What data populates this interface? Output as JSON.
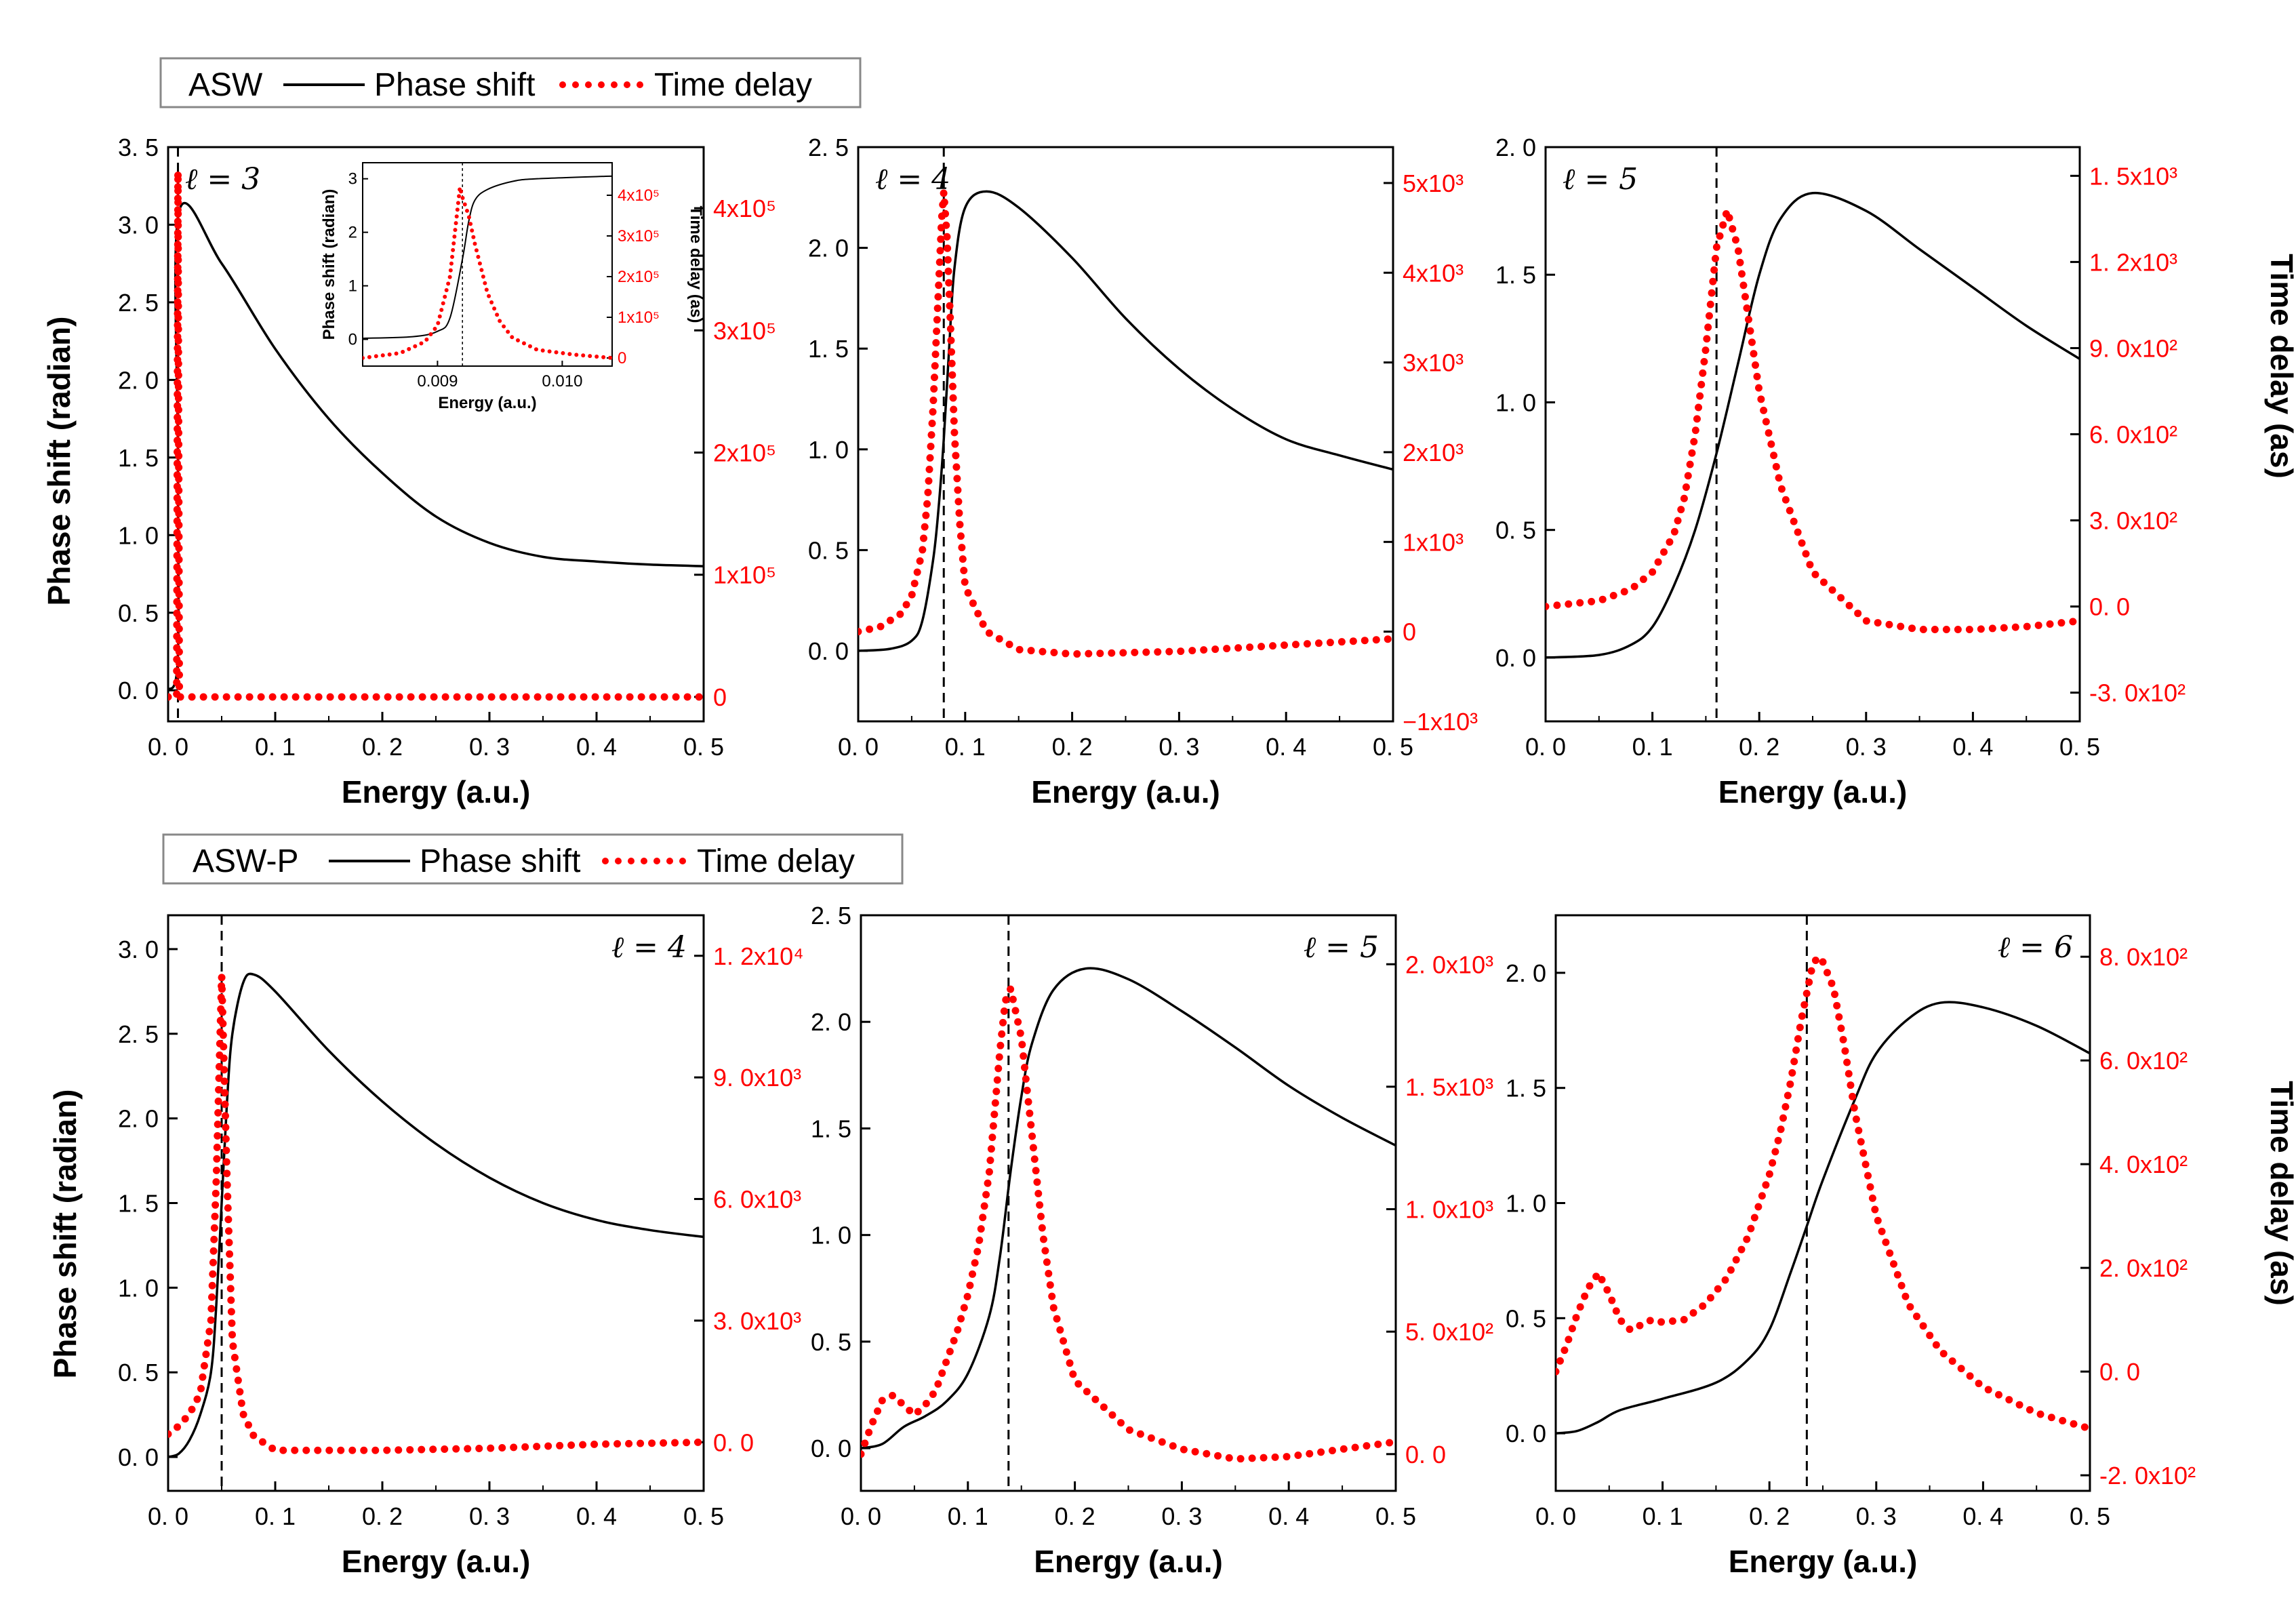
{
  "legend_asw": {
    "model": "ASW",
    "phase": "Phase shift",
    "delay": "Time delay"
  },
  "legend_aswp": {
    "model": "ASW-P",
    "phase": "Phase shift",
    "delay": "Time delay"
  },
  "labels": {
    "xlabel": "Energy (a.u.)",
    "ylabel_left": "Phase shift (radian)",
    "ylabel_right": "Time delay (as)",
    "inset_xlabel": "Energy (a.u.)",
    "inset_ylabel_left": "Phase shift (radian)",
    "inset_ylabel_right": "Time delay (as)"
  },
  "colors": {
    "phase": "#000000",
    "delay": "#ff0000",
    "frame": "#000000"
  },
  "chart_data": [
    {
      "type": "line",
      "panel": "ASW l=3",
      "model": "ASW",
      "l_label": "ℓ = 3",
      "xlim": [
        0,
        0.5
      ],
      "ylim": [
        -0.2,
        3.5
      ],
      "y2lim": [
        -20000,
        450000
      ],
      "xticks": [
        "0. 0",
        "0. 1",
        "0. 2",
        "0. 3",
        "0. 4",
        "0. 5"
      ],
      "yticks": [
        "0. 0",
        "0. 5",
        "1. 0",
        "1. 5",
        "2. 0",
        "2. 5",
        "3. 0",
        "3. 5"
      ],
      "y2ticks": [
        "0",
        "1x10⁵",
        "2x10⁵",
        "3x10⁵",
        "4x10⁵"
      ],
      "resonance_energy": 0.0092,
      "phase_shift": {
        "x": [
          0,
          0.009,
          0.0092,
          0.01,
          0.05,
          0.1,
          0.15,
          0.2,
          0.25,
          0.3,
          0.35,
          0.4,
          0.45,
          0.5
        ],
        "y": [
          0,
          0.2,
          1.5,
          3.08,
          2.75,
          2.2,
          1.75,
          1.4,
          1.12,
          0.95,
          0.86,
          0.83,
          0.81,
          0.8
        ]
      },
      "time_delay": {
        "x": [
          0,
          0.008,
          0.0092,
          0.0105,
          0.02,
          0.1,
          0.2,
          0.3,
          0.4,
          0.5
        ],
        "y": [
          0,
          0,
          430000,
          0,
          0,
          0,
          0,
          0,
          0,
          0
        ]
      },
      "inset": {
        "xlim": [
          0.0084,
          0.0104
        ],
        "ylim": [
          -0.5,
          3.3
        ],
        "y2lim": [
          -20000,
          480000
        ],
        "xticks": [
          "0.009",
          "0.010"
        ],
        "yticks": [
          "0",
          "1",
          "2",
          "3"
        ],
        "y2ticks": [
          "0",
          "1x10⁵",
          "2x10⁵",
          "3x10⁵",
          "4x10⁵"
        ],
        "phase_shift": {
          "x": [
            0.0084,
            0.0088,
            0.009,
            0.0091,
            0.0092,
            0.00925,
            0.0093,
            0.0094,
            0.0096,
            0.0098,
            0.0104
          ],
          "y": [
            0.02,
            0.05,
            0.15,
            0.4,
            1.5,
            2.2,
            2.6,
            2.8,
            2.95,
            3.0,
            3.05
          ]
        },
        "time_delay": {
          "x": [
            0.0084,
            0.0087,
            0.0089,
            0.009,
            0.0091,
            0.00918,
            0.0092,
            0.00925,
            0.0093,
            0.0094,
            0.0095,
            0.0096,
            0.0098,
            0.0101,
            0.0104
          ],
          "y": [
            0,
            12000,
            40000,
            80000,
            200000,
            420000,
            395000,
            350000,
            280000,
            160000,
            90000,
            50000,
            20000,
            8000,
            0
          ]
        }
      }
    },
    {
      "type": "line",
      "panel": "ASW l=4",
      "model": "ASW",
      "l_label": "ℓ = 4",
      "xlim": [
        0,
        0.5
      ],
      "ylim": [
        -0.35,
        2.5
      ],
      "y2lim": [
        -1000,
        5400
      ],
      "xticks": [
        "0. 0",
        "0. 1",
        "0. 2",
        "0. 3",
        "0. 4",
        "0. 5"
      ],
      "yticks": [
        "0. 0",
        "0. 5",
        "1. 0",
        "1. 5",
        "2. 0",
        "2. 5"
      ],
      "y2ticks": [
        "−1x10³",
        "0",
        "1x10³",
        "2x10³",
        "3x10³",
        "4x10³",
        "5x10³"
      ],
      "resonance_energy": 0.08,
      "phase_shift": {
        "x": [
          0,
          0.03,
          0.05,
          0.06,
          0.07,
          0.075,
          0.08,
          0.085,
          0.09,
          0.1,
          0.12,
          0.15,
          0.2,
          0.25,
          0.3,
          0.35,
          0.4,
          0.45,
          0.5
        ],
        "y": [
          0,
          0.01,
          0.05,
          0.15,
          0.45,
          0.7,
          1.05,
          1.5,
          1.9,
          2.2,
          2.28,
          2.2,
          1.95,
          1.65,
          1.4,
          1.2,
          1.05,
          0.97,
          0.9
        ]
      },
      "time_delay": {
        "x": [
          0,
          0.02,
          0.04,
          0.05,
          0.06,
          0.065,
          0.07,
          0.075,
          0.078,
          0.08,
          0.083,
          0.086,
          0.09,
          0.095,
          0.1,
          0.12,
          0.15,
          0.2,
          0.3,
          0.4,
          0.5
        ],
        "y": [
          0,
          50,
          200,
          400,
          900,
          1500,
          2500,
          3800,
          4600,
          4900,
          4400,
          3500,
          2200,
          1200,
          500,
          0,
          -200,
          -250,
          -220,
          -150,
          -80
        ]
      }
    },
    {
      "type": "line",
      "panel": "ASW l=5",
      "model": "ASW",
      "l_label": "ℓ = 5",
      "xlim": [
        0,
        0.5
      ],
      "ylim": [
        -0.25,
        2.0
      ],
      "y2lim": [
        -400,
        1600
      ],
      "xticks": [
        "0. 0",
        "0. 1",
        "0. 2",
        "0. 3",
        "0. 4",
        "0. 5"
      ],
      "yticks": [
        "0. 0",
        "0. 5",
        "1. 0",
        "1. 5",
        "2. 0"
      ],
      "y2ticks": [
        "-3. 0x10²",
        "0. 0",
        "3. 0x10²",
        "6. 0x10²",
        "9. 0x10²",
        "1. 2x10³",
        "1. 5x10³"
      ],
      "resonance_energy": 0.16,
      "phase_shift": {
        "x": [
          0,
          0.05,
          0.08,
          0.1,
          0.12,
          0.14,
          0.16,
          0.18,
          0.2,
          0.22,
          0.25,
          0.3,
          0.35,
          0.4,
          0.45,
          0.5
        ],
        "y": [
          0,
          0.01,
          0.05,
          0.12,
          0.28,
          0.5,
          0.8,
          1.15,
          1.5,
          1.72,
          1.82,
          1.75,
          1.6,
          1.45,
          1.3,
          1.17
        ]
      },
      "time_delay": {
        "x": [
          0,
          0.05,
          0.08,
          0.1,
          0.12,
          0.13,
          0.14,
          0.15,
          0.16,
          0.17,
          0.18,
          0.19,
          0.2,
          0.22,
          0.25,
          0.3,
          0.35,
          0.4,
          0.45,
          0.5
        ],
        "y": [
          0,
          20,
          60,
          120,
          250,
          380,
          600,
          900,
          1250,
          1380,
          1250,
          1000,
          750,
          420,
          120,
          -50,
          -80,
          -80,
          -70,
          -50
        ]
      }
    },
    {
      "type": "line",
      "panel": "ASW-P l=4",
      "model": "ASW-P",
      "l_label": "ℓ = 4",
      "xlim": [
        0,
        0.5
      ],
      "ylim": [
        -0.2,
        3.2
      ],
      "y2lim": [
        -1200,
        13000
      ],
      "xticks": [
        "0. 0",
        "0. 1",
        "0. 2",
        "0. 3",
        "0. 4",
        "0. 5"
      ],
      "yticks": [
        "0. 0",
        "0. 5",
        "1. 0",
        "1. 5",
        "2. 0",
        "2. 5",
        "3. 0"
      ],
      "y2ticks": [
        "0. 0",
        "3. 0x10³",
        "6. 0x10³",
        "9. 0x10³",
        "1. 2x10⁴"
      ],
      "resonance_energy": 0.05,
      "phase_shift": {
        "x": [
          0,
          0.01,
          0.02,
          0.03,
          0.04,
          0.045,
          0.05,
          0.055,
          0.06,
          0.07,
          0.08,
          0.1,
          0.15,
          0.2,
          0.25,
          0.3,
          0.35,
          0.4,
          0.45,
          0.5
        ],
        "y": [
          0,
          0.02,
          0.1,
          0.25,
          0.5,
          0.9,
          1.5,
          2.1,
          2.5,
          2.8,
          2.85,
          2.75,
          2.4,
          2.1,
          1.85,
          1.65,
          1.5,
          1.4,
          1.34,
          1.3
        ]
      },
      "time_delay": {
        "x": [
          0,
          0.01,
          0.02,
          0.03,
          0.04,
          0.045,
          0.05,
          0.055,
          0.06,
          0.07,
          0.08,
          0.1,
          0.2,
          0.3,
          0.4,
          0.5
        ],
        "y": [
          200,
          400,
          700,
          1200,
          3000,
          6500,
          11500,
          6500,
          2500,
          700,
          150,
          -200,
          -200,
          -150,
          -50,
          0
        ]
      }
    },
    {
      "type": "line",
      "panel": "ASW-P l=5",
      "model": "ASW-P",
      "l_label": "ℓ = 5",
      "xlim": [
        0,
        0.5
      ],
      "ylim": [
        -0.2,
        2.5
      ],
      "y2lim": [
        -150,
        2200
      ],
      "xticks": [
        "0. 0",
        "0. 1",
        "0. 2",
        "0. 3",
        "0. 4",
        "0. 5"
      ],
      "yticks": [
        "0. 0",
        "0. 5",
        "1. 0",
        "1. 5",
        "2. 0",
        "2. 5"
      ],
      "y2ticks": [
        "0. 0",
        "5. 0x10²",
        "1. 0x10³",
        "1. 5x10³",
        "2. 0x10³"
      ],
      "resonance_energy": 0.138,
      "phase_shift": {
        "x": [
          0,
          0.02,
          0.04,
          0.06,
          0.08,
          0.1,
          0.12,
          0.13,
          0.14,
          0.15,
          0.16,
          0.18,
          0.21,
          0.25,
          0.3,
          0.35,
          0.4,
          0.45,
          0.5
        ],
        "y": [
          0,
          0.02,
          0.1,
          0.15,
          0.22,
          0.35,
          0.62,
          0.9,
          1.3,
          1.65,
          1.9,
          2.15,
          2.25,
          2.2,
          2.05,
          1.88,
          1.7,
          1.55,
          1.42
        ]
      },
      "time_delay": {
        "x": [
          0,
          0.01,
          0.02,
          0.03,
          0.04,
          0.05,
          0.06,
          0.07,
          0.08,
          0.09,
          0.1,
          0.11,
          0.12,
          0.13,
          0.135,
          0.14,
          0.15,
          0.16,
          0.17,
          0.18,
          0.2,
          0.25,
          0.3,
          0.35,
          0.4,
          0.45,
          0.5
        ],
        "y": [
          0,
          120,
          220,
          240,
          200,
          160,
          200,
          260,
          380,
          500,
          650,
          850,
          1150,
          1650,
          1850,
          1900,
          1700,
          1300,
          900,
          600,
          300,
          100,
          20,
          -20,
          -10,
          20,
          50
        ]
      }
    },
    {
      "type": "line",
      "panel": "ASW-P l=6",
      "model": "ASW-P",
      "l_label": "ℓ = 6",
      "xlim": [
        0,
        0.5
      ],
      "ylim": [
        -0.25,
        2.25
      ],
      "y2lim": [
        -230,
        880
      ],
      "xticks": [
        "0. 0",
        "0. 1",
        "0. 2",
        "0. 3",
        "0. 4",
        "0. 5"
      ],
      "yticks": [
        "0. 0",
        "0. 5",
        "1. 0",
        "1. 5",
        "2. 0"
      ],
      "y2ticks": [
        "-2. 0x10²",
        "0. 0",
        "2. 0x10²",
        "4. 0x10²",
        "6. 0x10²",
        "8. 0x10²"
      ],
      "resonance_energy": 0.235,
      "phase_shift": {
        "x": [
          0,
          0.02,
          0.04,
          0.06,
          0.1,
          0.15,
          0.18,
          0.2,
          0.22,
          0.235,
          0.25,
          0.28,
          0.3,
          0.33,
          0.36,
          0.4,
          0.45,
          0.5
        ],
        "y": [
          0,
          0.01,
          0.05,
          0.1,
          0.15,
          0.22,
          0.32,
          0.45,
          0.7,
          0.9,
          1.1,
          1.45,
          1.65,
          1.8,
          1.87,
          1.85,
          1.77,
          1.65
        ]
      },
      "time_delay": {
        "x": [
          0,
          0.01,
          0.02,
          0.03,
          0.04,
          0.05,
          0.06,
          0.07,
          0.08,
          0.09,
          0.1,
          0.12,
          0.14,
          0.16,
          0.18,
          0.2,
          0.21,
          0.22,
          0.23,
          0.24,
          0.245,
          0.25,
          0.26,
          0.27,
          0.28,
          0.3,
          0.33,
          0.36,
          0.4,
          0.45,
          0.5
        ],
        "y": [
          0,
          50,
          110,
          160,
          190,
          150,
          100,
          80,
          90,
          100,
          95,
          100,
          130,
          180,
          260,
          380,
          460,
          560,
          680,
          780,
          800,
          790,
          740,
          630,
          500,
          300,
          130,
          40,
          -30,
          -80,
          -110
        ]
      }
    }
  ]
}
